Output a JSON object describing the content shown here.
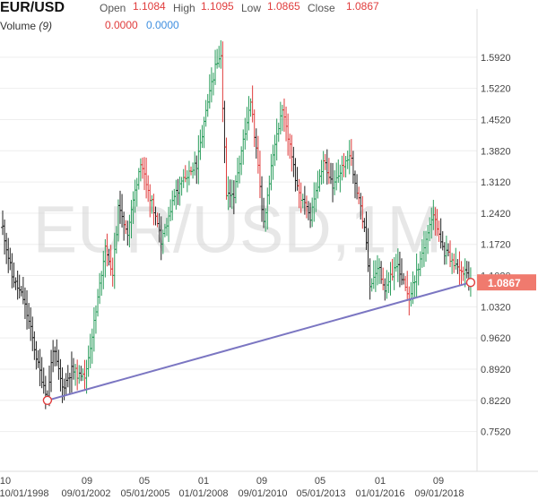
{
  "header": {
    "symbol": "EUR/USD",
    "volume_label": "Volume",
    "volume_period": "(9)",
    "open_label": "Open",
    "open_value": "1.1084",
    "high_label": "High",
    "high_value": "1.1095",
    "low_label": "Low",
    "low_value": "1.0865",
    "close_label": "Close",
    "close_value": "1.0867",
    "vol_value_1": "0.0000",
    "vol_value_2": "0.0000"
  },
  "watermark": "EUR/USD,1M",
  "colors": {
    "up": "#2a9d5c",
    "down": "#e03c3c",
    "neutral": "#222222",
    "trendline": "#7b76c2",
    "price_tag_bg": "#f07a6e",
    "grid": "#eeeeee"
  },
  "chart_data": {
    "type": "ohlc",
    "title": "EUR/USD",
    "interval": "1M",
    "xlabel": "",
    "ylabel": "",
    "ylim": [
      0.715,
      1.64
    ],
    "y_ticks": [
      "1.5920",
      "1.5220",
      "1.4520",
      "1.3820",
      "1.3120",
      "1.2420",
      "1.1720",
      "1.1020",
      "1.0320",
      "0.9620",
      "0.8920",
      "0.8220",
      "0.7520"
    ],
    "x_ticks_top": [
      "10",
      "09",
      "05",
      "01",
      "09",
      "05",
      "01",
      "09"
    ],
    "x_ticks_bottom": [
      "10/01/1998",
      "09/01/2002",
      "05/01/2005",
      "01/01/2008",
      "09/01/2010",
      "05/01/2013",
      "01/01/2016",
      "09/01/2018"
    ],
    "last_price": "1.0867",
    "trendline": {
      "from": [
        "2000-10",
        0.822
      ],
      "to": [
        "2019-09",
        1.0867
      ]
    },
    "anchors": [
      [
        "1998-10",
        1.21
      ],
      [
        "1999-03",
        1.1
      ],
      [
        "1999-09",
        1.05
      ],
      [
        "2000-01",
        0.98
      ],
      [
        "2000-05",
        0.9
      ],
      [
        "2000-10",
        0.83
      ],
      [
        "2001-01",
        0.94
      ],
      [
        "2001-06",
        0.85
      ],
      [
        "2001-11",
        0.89
      ],
      [
        "2002-06",
        0.87
      ],
      [
        "2002-12",
        1.02
      ],
      [
        "2003-05",
        1.17
      ],
      [
        "2003-09",
        1.11
      ],
      [
        "2003-12",
        1.25
      ],
      [
        "2004-05",
        1.2
      ],
      [
        "2004-12",
        1.36
      ],
      [
        "2005-05",
        1.28
      ],
      [
        "2005-11",
        1.18
      ],
      [
        "2006-06",
        1.28
      ],
      [
        "2006-12",
        1.32
      ],
      [
        "2007-06",
        1.35
      ],
      [
        "2007-11",
        1.47
      ],
      [
        "2008-04",
        1.57
      ],
      [
        "2008-07",
        1.59
      ],
      [
        "2008-10",
        1.28
      ],
      [
        "2009-02",
        1.28
      ],
      [
        "2009-11",
        1.5
      ],
      [
        "2010-06",
        1.22
      ],
      [
        "2010-11",
        1.38
      ],
      [
        "2011-04",
        1.48
      ],
      [
        "2011-12",
        1.3
      ],
      [
        "2012-07",
        1.23
      ],
      [
        "2013-02",
        1.36
      ],
      [
        "2013-07",
        1.3
      ],
      [
        "2014-04",
        1.38
      ],
      [
        "2014-12",
        1.21
      ],
      [
        "2015-03",
        1.08
      ],
      [
        "2015-08",
        1.12
      ],
      [
        "2015-11",
        1.06
      ],
      [
        "2016-05",
        1.13
      ],
      [
        "2016-12",
        1.05
      ],
      [
        "2017-06",
        1.14
      ],
      [
        "2018-01",
        1.24
      ],
      [
        "2018-06",
        1.16
      ],
      [
        "2019-03",
        1.12
      ],
      [
        "2019-09",
        1.09
      ]
    ]
  }
}
